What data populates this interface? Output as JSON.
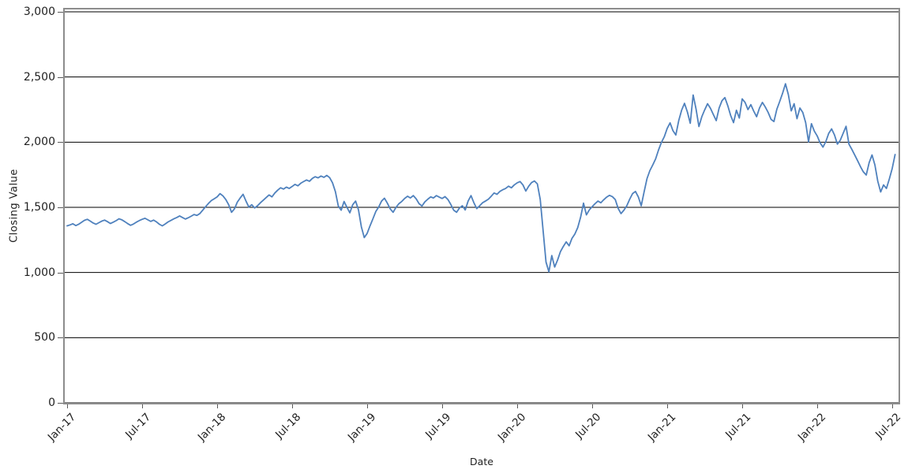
{
  "chart": {
    "x_axis_title": "Date",
    "y_axis_title": "Closing Value",
    "colors": {
      "line": "#4f81bd",
      "gridline": "#000000",
      "plot_border": "#8c8c8c",
      "tick": "#595959",
      "text": "#1f1f1f",
      "background": "#ffffff"
    },
    "y_ticks": [
      {
        "value": 0,
        "label": "0"
      },
      {
        "value": 500,
        "label": "500"
      },
      {
        "value": 1000,
        "label": "1,000"
      },
      {
        "value": 1500,
        "label": "1,500"
      },
      {
        "value": 2000,
        "label": "2,000"
      },
      {
        "value": 2500,
        "label": "2,500"
      },
      {
        "value": 3000,
        "label": "3,000"
      }
    ],
    "x_ticks": [
      "Jan-17",
      "Jul-17",
      "Jan-18",
      "Jul-18",
      "Jan-19",
      "Jul-19",
      "Jan-20",
      "Jul-20",
      "Jan-21",
      "Jul-21",
      "Jan-22",
      "Jul-22"
    ]
  },
  "chart_data": {
    "type": "line",
    "title": "",
    "xlabel": "Date",
    "ylabel": "Closing Value",
    "ylim": [
      0,
      3000
    ],
    "x_range": [
      "Jan-2017",
      "Jul-2022"
    ],
    "x_unit": "weekly",
    "x_tick_labels": [
      "Jan-17",
      "Jul-17",
      "Jan-18",
      "Jul-18",
      "Jan-19",
      "Jul-19",
      "Jan-20",
      "Jul-20",
      "Jan-21",
      "Jul-21",
      "Jan-22",
      "Jul-22"
    ],
    "grid": "horizontal-only",
    "legend": "none",
    "series": [
      {
        "name": "Closing Value",
        "color": "#4f81bd",
        "values": [
          1358,
          1365,
          1374,
          1360,
          1370,
          1385,
          1400,
          1408,
          1395,
          1380,
          1370,
          1382,
          1394,
          1402,
          1390,
          1376,
          1386,
          1398,
          1412,
          1404,
          1390,
          1375,
          1362,
          1372,
          1386,
          1398,
          1408,
          1416,
          1404,
          1392,
          1402,
          1388,
          1370,
          1358,
          1372,
          1388,
          1400,
          1412,
          1422,
          1434,
          1422,
          1410,
          1420,
          1432,
          1445,
          1438,
          1452,
          1478,
          1505,
          1530,
          1552,
          1566,
          1580,
          1605,
          1588,
          1560,
          1520,
          1462,
          1488,
          1540,
          1572,
          1600,
          1548,
          1502,
          1520,
          1495,
          1512,
          1535,
          1555,
          1575,
          1595,
          1580,
          1610,
          1632,
          1650,
          1640,
          1655,
          1645,
          1660,
          1676,
          1665,
          1685,
          1698,
          1710,
          1700,
          1722,
          1735,
          1726,
          1740,
          1730,
          1745,
          1728,
          1688,
          1620,
          1510,
          1478,
          1545,
          1500,
          1458,
          1520,
          1548,
          1480,
          1350,
          1268,
          1300,
          1358,
          1412,
          1468,
          1502,
          1548,
          1570,
          1532,
          1488,
          1462,
          1500,
          1528,
          1545,
          1568,
          1585,
          1572,
          1590,
          1565,
          1528,
          1510,
          1542,
          1562,
          1580,
          1572,
          1590,
          1578,
          1568,
          1582,
          1560,
          1522,
          1478,
          1462,
          1495,
          1512,
          1480,
          1548,
          1590,
          1535,
          1490,
          1512,
          1535,
          1548,
          1562,
          1585,
          1610,
          1600,
          1622,
          1635,
          1645,
          1662,
          1650,
          1672,
          1688,
          1698,
          1672,
          1625,
          1662,
          1690,
          1702,
          1680,
          1560,
          1320,
          1080,
          1005,
          1130,
          1042,
          1095,
          1160,
          1200,
          1235,
          1205,
          1262,
          1295,
          1345,
          1425,
          1532,
          1442,
          1480,
          1505,
          1528,
          1548,
          1535,
          1558,
          1578,
          1592,
          1582,
          1560,
          1492,
          1452,
          1478,
          1512,
          1562,
          1605,
          1622,
          1580,
          1512,
          1618,
          1720,
          1782,
          1825,
          1872,
          1940,
          1998,
          2042,
          2105,
          2148,
          2088,
          2055,
          2165,
          2245,
          2298,
          2232,
          2145,
          2362,
          2255,
          2120,
          2195,
          2248,
          2295,
          2260,
          2212,
          2165,
          2262,
          2318,
          2342,
          2280,
          2205,
          2150,
          2245,
          2185,
          2332,
          2305,
          2250,
          2288,
          2238,
          2195,
          2262,
          2305,
          2270,
          2228,
          2175,
          2158,
          2252,
          2312,
          2375,
          2448,
          2365,
          2240,
          2295,
          2180,
          2262,
          2228,
          2150,
          2002,
          2142,
          2085,
          2048,
          1995,
          1962,
          2005,
          2068,
          2102,
          2055,
          1985,
          2015,
          2068,
          2122,
          1985,
          1945,
          1902,
          1858,
          1812,
          1772,
          1748,
          1842,
          1902,
          1825,
          1700,
          1618,
          1672,
          1645,
          1718,
          1798,
          1905
        ]
      }
    ]
  }
}
